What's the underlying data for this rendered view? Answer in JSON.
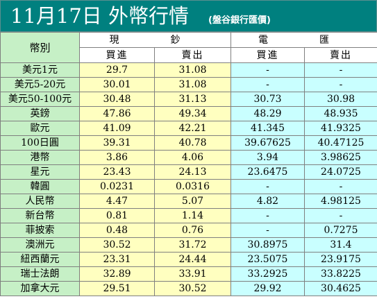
{
  "title": "11月17日 外幣行情",
  "subtitle": "(盤谷銀行匯價)",
  "headers": {
    "currency": "幣別",
    "cash": "現　鈔",
    "wire": "電　匯",
    "buy": "買進",
    "sell": "賣出"
  },
  "rows": [
    {
      "name": "美元1元",
      "cash_buy": "29.7",
      "cash_sell": "31.08",
      "wire_buy": "-",
      "wire_sell": "-"
    },
    {
      "name": "美元5-20元",
      "cash_buy": "30.01",
      "cash_sell": "31.08",
      "wire_buy": "-",
      "wire_sell": "-"
    },
    {
      "name": "美元50-100元",
      "cash_buy": "30.48",
      "cash_sell": "31.13",
      "wire_buy": "30.73",
      "wire_sell": "30.98"
    },
    {
      "name": "英鎊",
      "cash_buy": "47.86",
      "cash_sell": "49.34",
      "wire_buy": "48.29",
      "wire_sell": "48.935"
    },
    {
      "name": "歐元",
      "cash_buy": "41.09",
      "cash_sell": "42.21",
      "wire_buy": "41.345",
      "wire_sell": "41.9325"
    },
    {
      "name": "100日圓",
      "cash_buy": "39.31",
      "cash_sell": "40.78",
      "wire_buy": "39.67625",
      "wire_sell": "40.47125"
    },
    {
      "name": "港幣",
      "cash_buy": "3.86",
      "cash_sell": "4.06",
      "wire_buy": "3.94",
      "wire_sell": "3.98625"
    },
    {
      "name": "星元",
      "cash_buy": "23.43",
      "cash_sell": "24.13",
      "wire_buy": "23.6475",
      "wire_sell": "24.0725"
    },
    {
      "name": "韓圓",
      "cash_buy": "0.0231",
      "cash_sell": "0.0316",
      "wire_buy": "-",
      "wire_sell": "-"
    },
    {
      "name": "人民幣",
      "cash_buy": "4.47",
      "cash_sell": "5.07",
      "wire_buy": "4.82",
      "wire_sell": "4.98125"
    },
    {
      "name": "新台幣",
      "cash_buy": "0.81",
      "cash_sell": "1.14",
      "wire_buy": "-",
      "wire_sell": "-"
    },
    {
      "name": "菲披索",
      "cash_buy": "0.48",
      "cash_sell": "0.76",
      "wire_buy": "-",
      "wire_sell": "0.7275"
    },
    {
      "name": "澳洲元",
      "cash_buy": "30.52",
      "cash_sell": "31.72",
      "wire_buy": "30.8975",
      "wire_sell": "31.4"
    },
    {
      "name": "紐西蘭元",
      "cash_buy": "23.31",
      "cash_sell": "24.44",
      "wire_buy": "23.5075",
      "wire_sell": "23.9175"
    },
    {
      "name": "瑞士法朗",
      "cash_buy": "32.89",
      "cash_sell": "33.91",
      "wire_buy": "33.2925",
      "wire_sell": "33.8225"
    },
    {
      "name": "加拿大元",
      "cash_buy": "29.51",
      "cash_sell": "30.52",
      "wire_buy": "29.92",
      "wire_sell": "30.4625"
    }
  ],
  "colors": {
    "title_bg": "#00807f",
    "name_col": "#c6f0c6",
    "cash_col": "#ffffc0",
    "wire_col": "#c9ffff"
  }
}
